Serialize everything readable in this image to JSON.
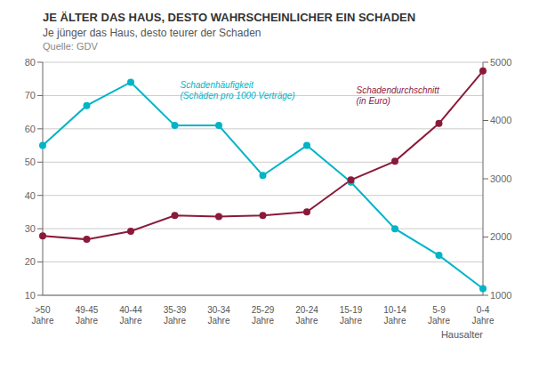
{
  "chart_data": {
    "type": "line",
    "title": "JE ÄLTER DAS HAUS, DESTO WAHRSCHEINLICHER EIN SCHADEN",
    "subtitle": "Je jünger das Haus, desto teurer der Schaden",
    "annotations": [
      "Quelle: GDV"
    ],
    "x_label": "Hausalter",
    "categories": [
      ">50\nJahre",
      "49-45\nJahre",
      "40-44\nJahre",
      "35-39\nJahre",
      "30-34\nJahre",
      "25-29\nJahre",
      "20-24\nJahre",
      "15-19\nJahre",
      "10-14\nJahre",
      "5-9\nJahre",
      "0-4\nJahre"
    ],
    "series": [
      {
        "name": "Schadenhäufigkeit\n(Schäden pro 1000 Verträge)",
        "color": "#00b4c8",
        "marker": "circle",
        "values": [
          55,
          67,
          74,
          61,
          61,
          46,
          55,
          44,
          30,
          22,
          12
        ]
      },
      {
        "name": "Schadendurchschnitt\n(in Euro)",
        "color": "#8b1a3a",
        "marker": "circle",
        "axis": "y2",
        "values": [
          2020,
          1960,
          2100,
          2370,
          2350,
          2370,
          2430,
          2980,
          3300,
          3950,
          4850
        ]
      }
    ],
    "ylim": [
      10,
      80
    ],
    "yticks": [
      10,
      20,
      30,
      40,
      50,
      60,
      70,
      80
    ],
    "y2lim": [
      1000,
      5000
    ],
    "y2ticks": [
      1000,
      2000,
      3000,
      4000,
      5000
    ],
    "grid": true
  }
}
